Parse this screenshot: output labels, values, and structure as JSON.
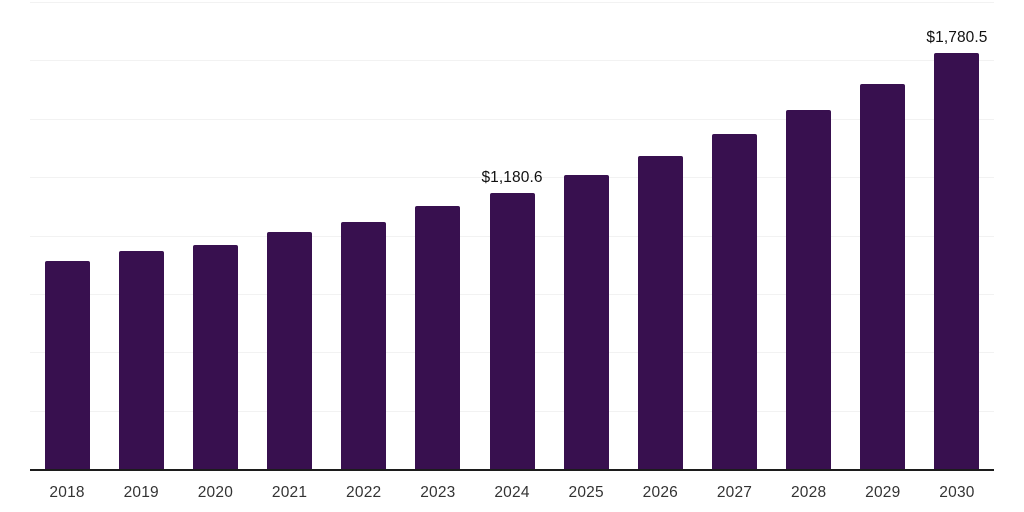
{
  "chart_data": {
    "type": "bar",
    "title": "",
    "categories": [
      "2018",
      "2019",
      "2020",
      "2021",
      "2022",
      "2023",
      "2024",
      "2025",
      "2026",
      "2027",
      "2028",
      "2029",
      "2030"
    ],
    "values": [
      890.0,
      935.0,
      961.0,
      1013.0,
      1060.0,
      1127.0,
      1180.6,
      1260.0,
      1341.0,
      1434.0,
      1538.0,
      1648.0,
      1780.5
    ],
    "data_labels": {
      "2024": "$1,180.6",
      "2030": "$1,780.5"
    },
    "xlabel": "",
    "ylabel": "",
    "ylim": [
      0,
      2000
    ],
    "gridline_interval": 250,
    "grid": "horizontal",
    "legend": "none",
    "colors": {
      "bar": "#38104f",
      "gridline": "#f2f2f2",
      "axis_line": "#1c1c1c",
      "data_label_text": "#111111",
      "tick_label_text": "#333333",
      "background": "#ffffff"
    }
  }
}
